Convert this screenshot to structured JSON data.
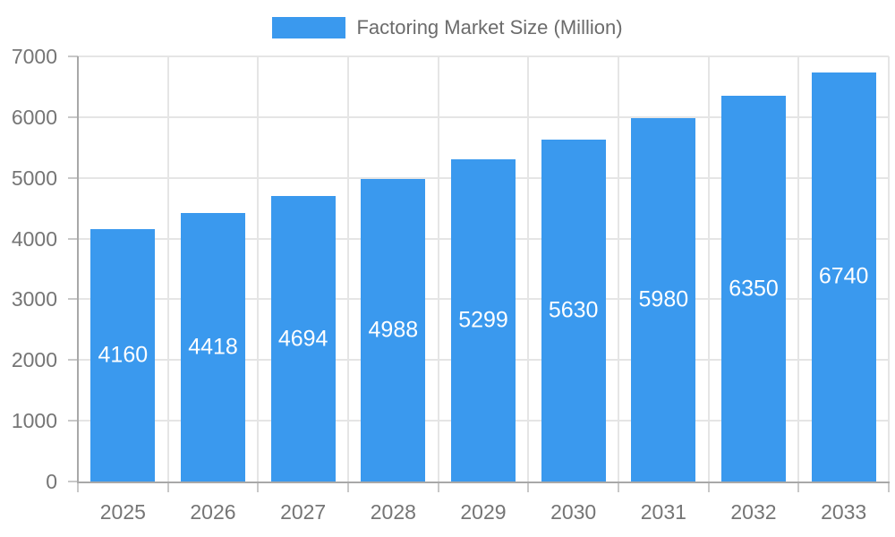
{
  "legend": {
    "items": [
      {
        "label": "Factoring Market Size (Million)",
        "color": "#3a99ee"
      }
    ]
  },
  "colors": {
    "background": "#ffffff",
    "bar": "#3a99ee",
    "grid": "#e5e5e5",
    "axis": "#a8a8a8",
    "tick": "#c8c8c8",
    "axis_label": "#757575",
    "legend_label": "#6b6b6b",
    "data_label": "#ffffff"
  },
  "chart_data": {
    "type": "bar",
    "title": "Factoring Market Size (Million)",
    "series_name": "Factoring Market Size (Million)",
    "categories": [
      "2025",
      "2026",
      "2027",
      "2028",
      "2029",
      "2030",
      "2031",
      "2032",
      "2033"
    ],
    "values": [
      4160,
      4418,
      4694,
      4988,
      5299,
      5630,
      5980,
      6350,
      6740
    ],
    "data_labels": [
      "4160",
      "4418",
      "4694",
      "4988",
      "5299",
      "5630",
      "5980",
      "6350",
      "6740"
    ],
    "xlabel": "",
    "ylabel": "",
    "ylim": [
      0,
      7000
    ],
    "yticks": [
      0,
      1000,
      2000,
      3000,
      4000,
      5000,
      6000,
      7000
    ],
    "ytick_labels": [
      "0",
      "1000",
      "2000",
      "3000",
      "4000",
      "5000",
      "6000",
      "7000"
    ],
    "grid": true,
    "legend_position": "top-center",
    "data_label_style": "inside vertical-center white"
  }
}
